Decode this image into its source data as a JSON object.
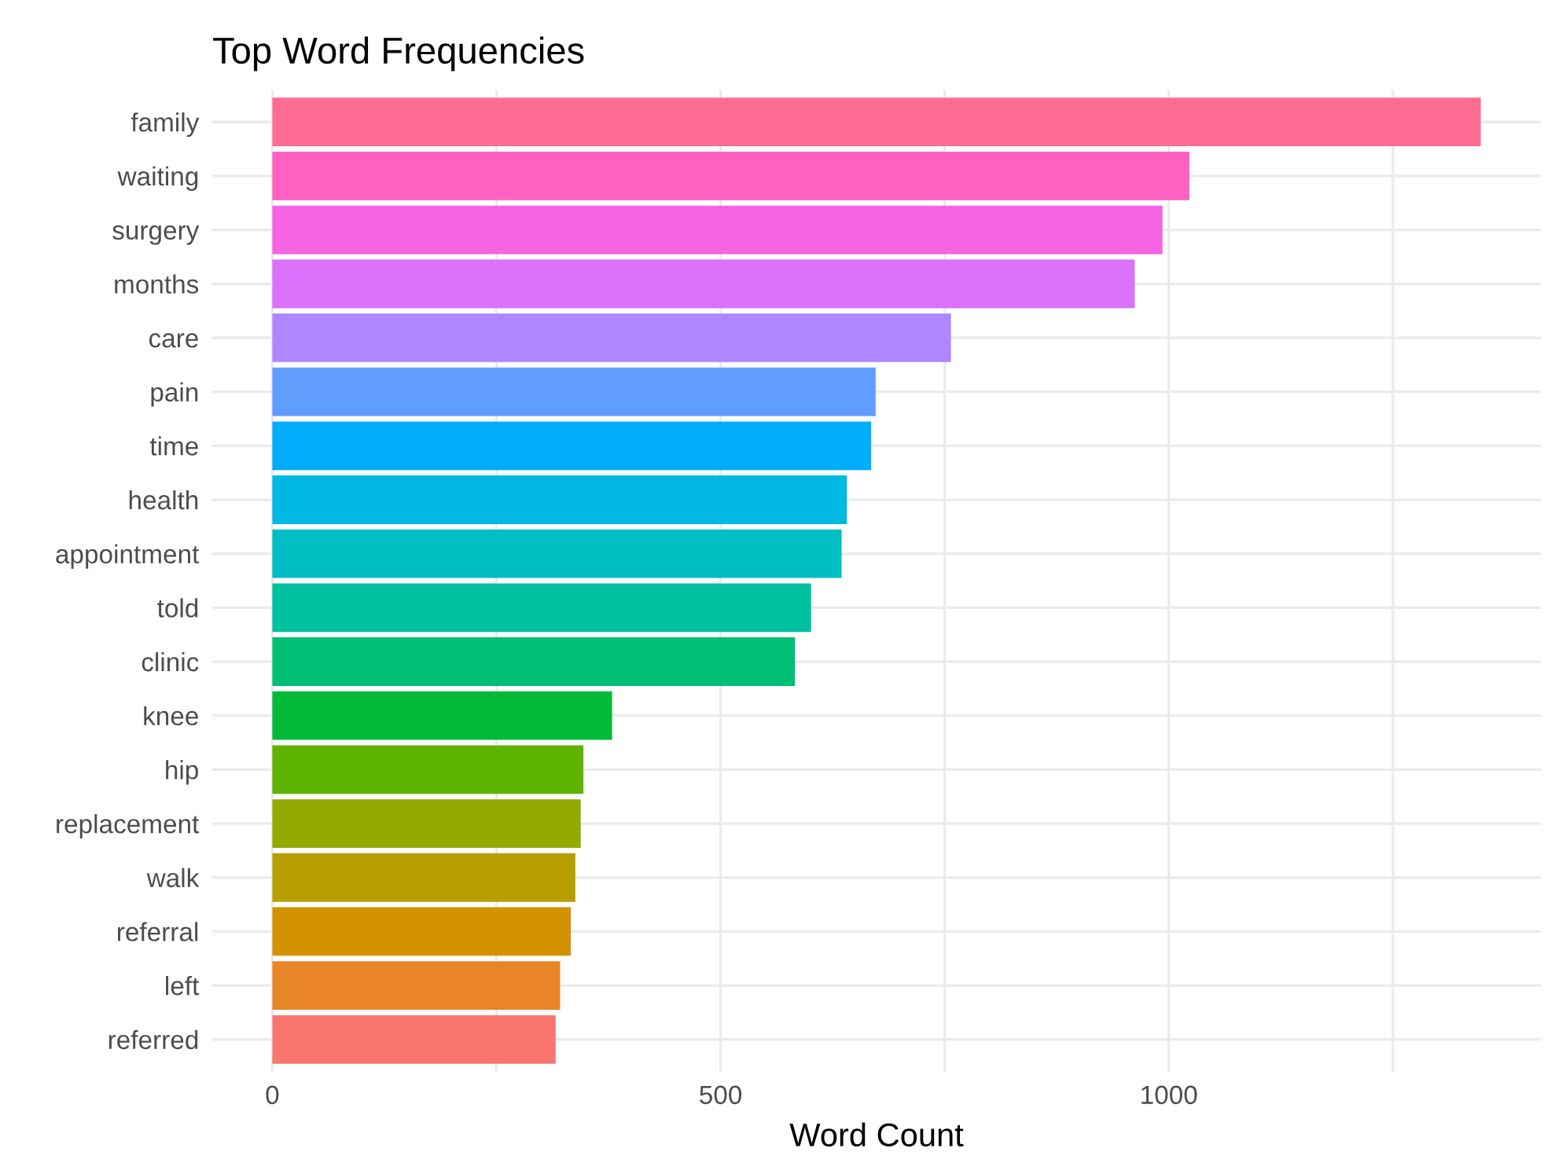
{
  "chart_data": {
    "type": "bar",
    "orientation": "horizontal",
    "title": "Top Word Frequencies",
    "xlabel": "Word Count",
    "categories": [
      "family",
      "waiting",
      "surgery",
      "months",
      "care",
      "pain",
      "time",
      "health",
      "appointment",
      "told",
      "clinic",
      "knee",
      "hip",
      "replacement",
      "walk",
      "referral",
      "left",
      "referred"
    ],
    "values": [
      1348,
      1023,
      993,
      962,
      757,
      673,
      668,
      641,
      635,
      601,
      583,
      379,
      347,
      344,
      338,
      333,
      321,
      316
    ],
    "colors": [
      "#FF6C91",
      "#FF61C3",
      "#F564E3",
      "#DB72FB",
      "#AE87FF",
      "#619CFF",
      "#00ADFA",
      "#00B9E3",
      "#00BFC4",
      "#00C19F",
      "#00BF74",
      "#00BA38",
      "#5EB300",
      "#93AA00",
      "#B79F00",
      "#D39200",
      "#E88526",
      "#F8766D"
    ],
    "xlim": [
      -67,
      1415
    ],
    "xticks": [
      0,
      {
        "value": 250,
        "label": null
      },
      500,
      {
        "value": 750,
        "label": null
      },
      1000,
      {
        "value": 1250,
        "label": null
      }
    ],
    "grid": true
  }
}
